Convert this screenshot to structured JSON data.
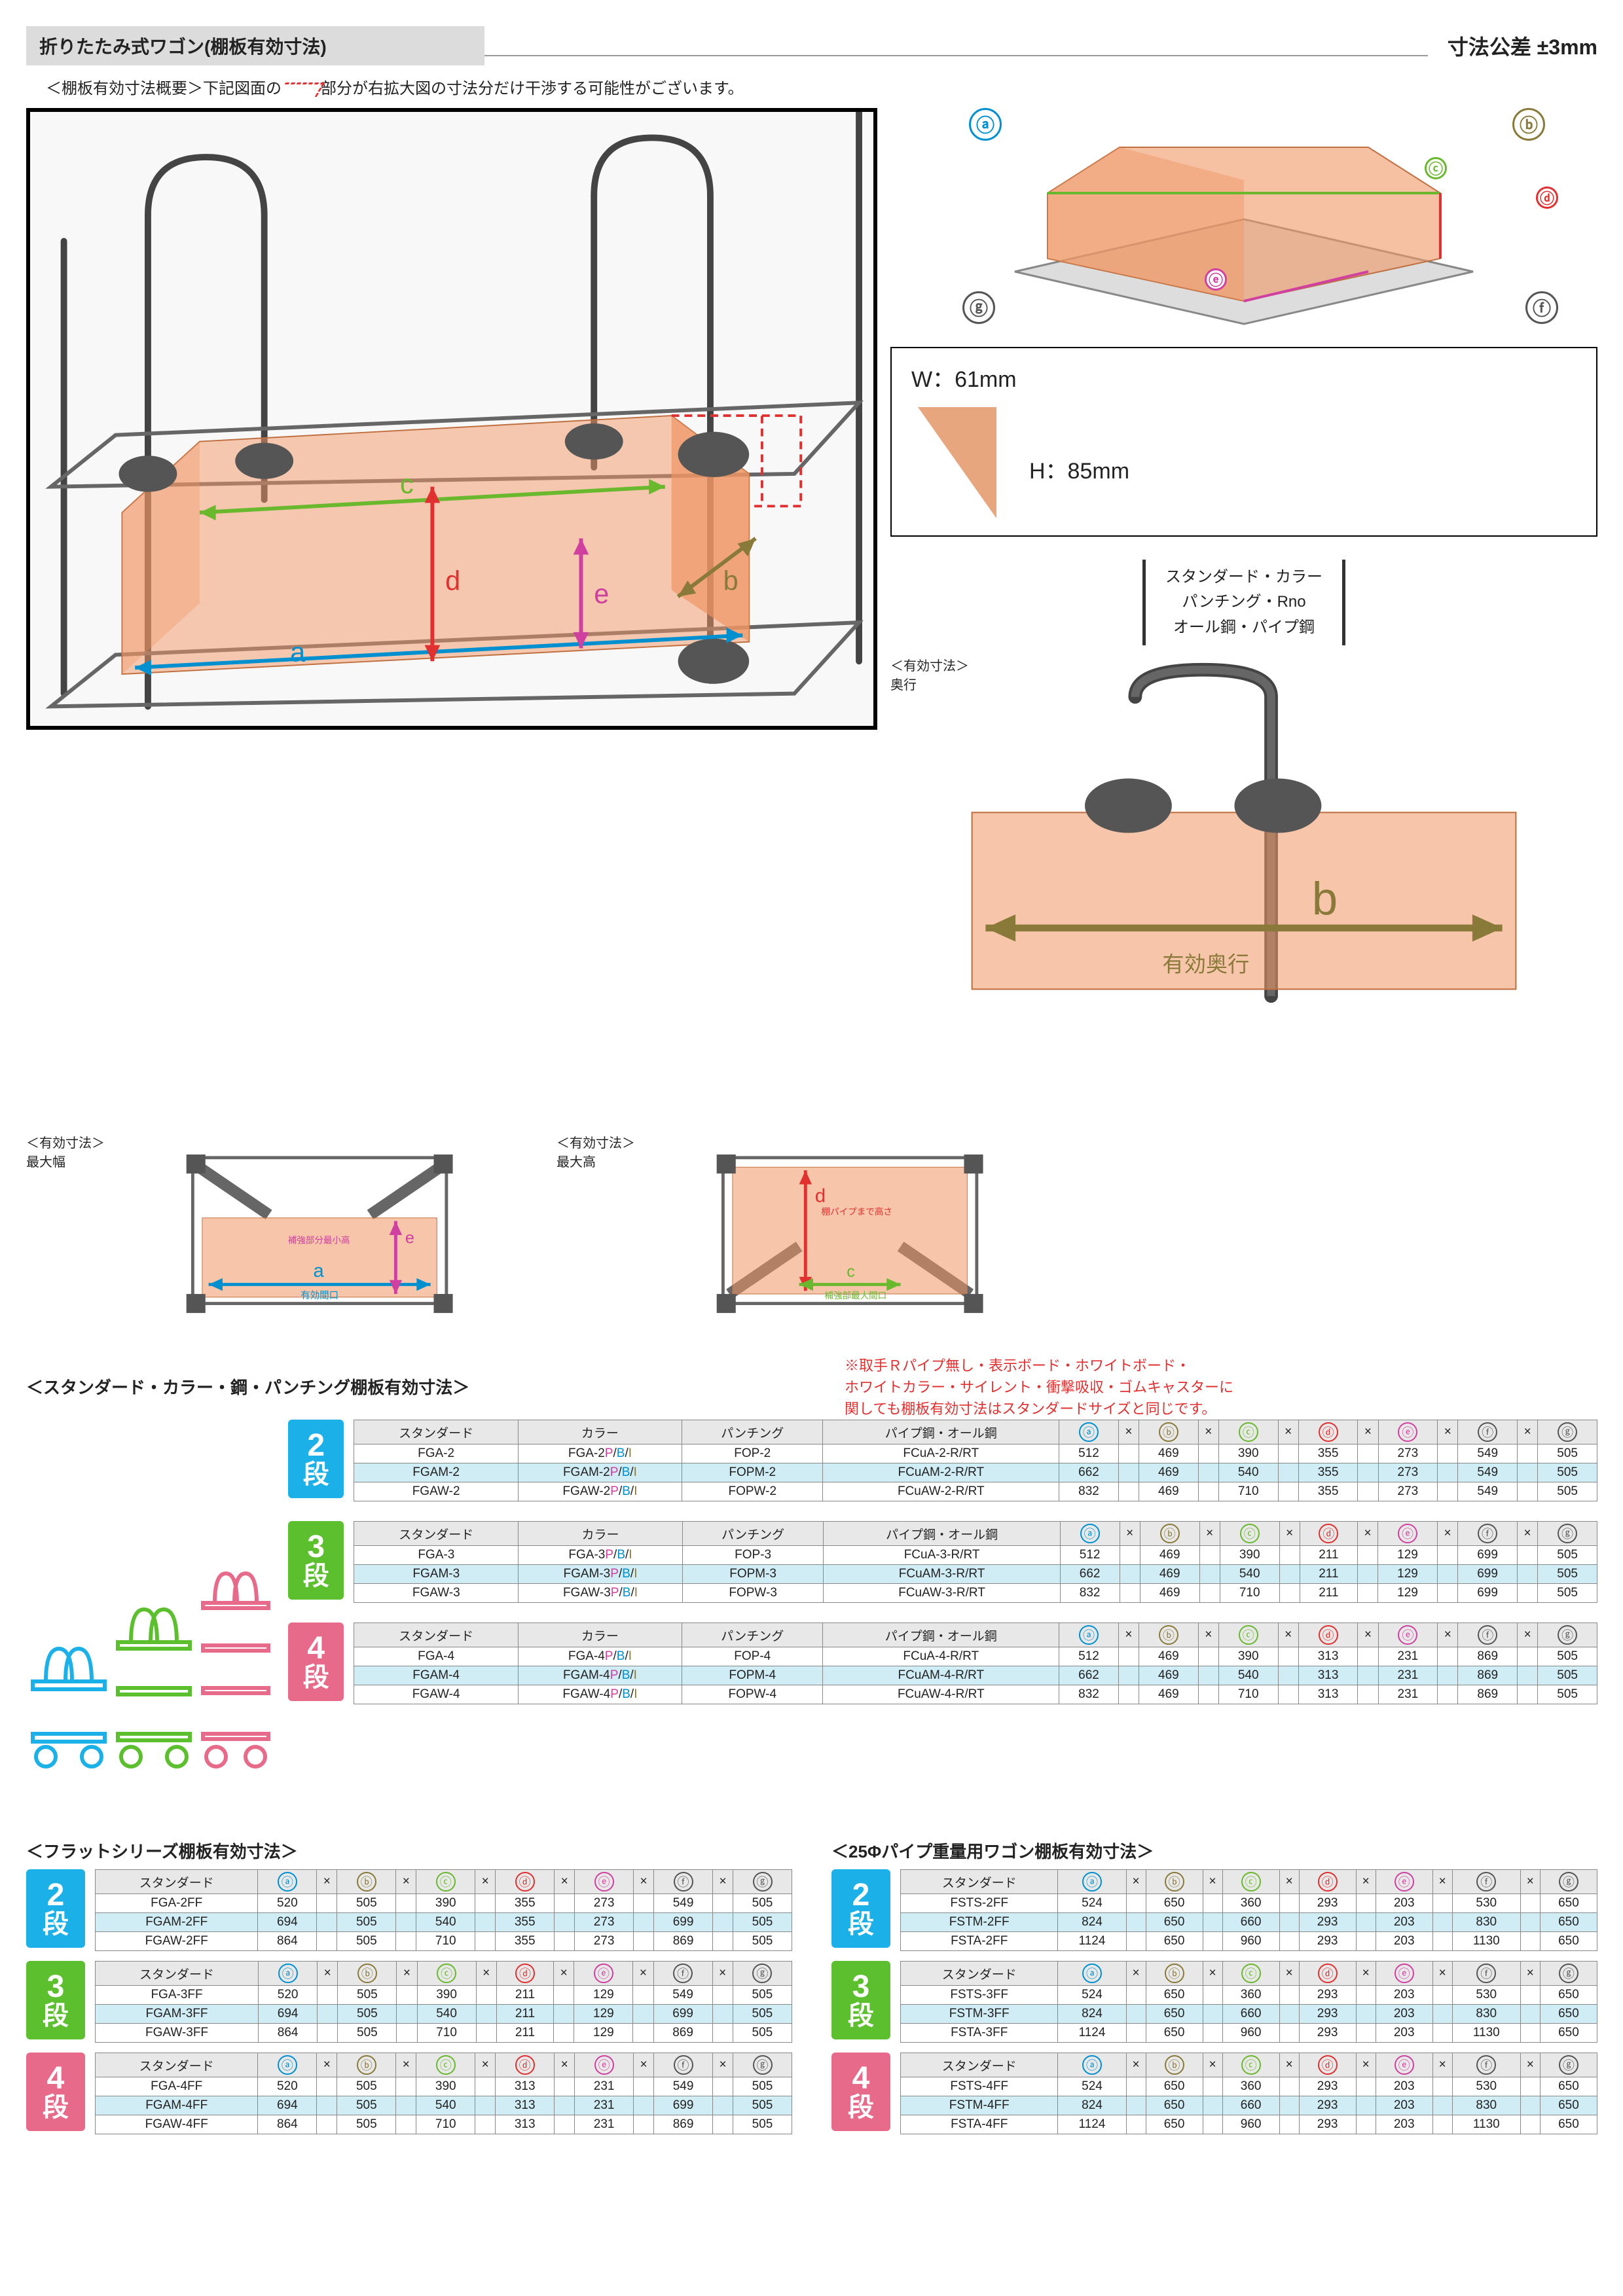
{
  "header": {
    "title": "折りたたみ式ワゴン(棚板有効寸法)",
    "tolerance": "寸法公差 ±3mm"
  },
  "subtitle": {
    "prefix": "＜棚板有効寸法概要＞下記図面の",
    "highlight": "　　　",
    "suffix": "部分が右拡大図の寸法分だけ干渉する可能性がございます。"
  },
  "callout": {
    "w": "W：61mm",
    "h": "H：85mm"
  },
  "type_box": [
    "スタンダード・カラー",
    "パンチング・Rno",
    "オール鋼・パイプ鋼"
  ],
  "small_diag": [
    {
      "t1": "＜有効寸法＞",
      "t2": "最大幅",
      "a": "a",
      "a_sub": "有効間口",
      "e": "e",
      "e_sub": "補強部分最小高"
    },
    {
      "t1": "＜有効寸法＞",
      "t2": "最大高",
      "d": "d",
      "d_sub": "棚パイプまで高さ",
      "c": "c",
      "c_sub": "補強部最大間口"
    },
    {
      "t1": "＜有効寸法＞",
      "t2": "奥行",
      "b": "b",
      "b_sub": "有効奥行"
    }
  ],
  "note_red": "※取手Ｒパイプ無し・表示ボード・ホワイトボード・\nホワイトカラー・サイレント・衝撃吸収・ゴムキャスターに\n関しても棚板有効寸法はスタンダードサイズと同じです。",
  "section_std": "＜スタンダード・カラー・鋼・パンチング棚板有効寸法＞",
  "section_flat": "＜フラットシリーズ棚板有効寸法＞",
  "section_25": "＜25Φパイプ重量用ワゴン棚板有効寸法＞",
  "hdr": {
    "std": "スタンダード",
    "color": "カラー",
    "punch": "パンチング",
    "pipe": "パイプ鋼・オール鋼"
  },
  "dim_letters": [
    "ⓐ",
    "ⓑ",
    "ⓒ",
    "ⓓ",
    "ⓔ",
    "ⓕ",
    "ⓖ"
  ],
  "std_tables": [
    {
      "tier": 2,
      "rows": [
        {
          "s": "FGA-2",
          "c": "FGA-2",
          "p": "FOP-2",
          "pi": "FCuA-2-R/RT",
          "d": [
            512,
            469,
            390,
            355,
            273,
            549,
            505
          ]
        },
        {
          "s": "FGAM-2",
          "c": "FGAM-2",
          "p": "FOPM-2",
          "pi": "FCuAM-2-R/RT",
          "d": [
            662,
            469,
            540,
            355,
            273,
            549,
            505
          ]
        },
        {
          "s": "FGAW-2",
          "c": "FGAW-2",
          "p": "FOPW-2",
          "pi": "FCuAW-2-R/RT",
          "d": [
            832,
            469,
            710,
            355,
            273,
            549,
            505
          ]
        }
      ]
    },
    {
      "tier": 3,
      "rows": [
        {
          "s": "FGA-3",
          "c": "FGA-3",
          "p": "FOP-3",
          "pi": "FCuA-3-R/RT",
          "d": [
            512,
            469,
            390,
            211,
            129,
            699,
            505
          ]
        },
        {
          "s": "FGAM-3",
          "c": "FGAM-3",
          "p": "FOPM-3",
          "pi": "FCuAM-3-R/RT",
          "d": [
            662,
            469,
            540,
            211,
            129,
            699,
            505
          ]
        },
        {
          "s": "FGAW-3",
          "c": "FGAW-3",
          "p": "FOPW-3",
          "pi": "FCuAW-3-R/RT",
          "d": [
            832,
            469,
            710,
            211,
            129,
            699,
            505
          ]
        }
      ]
    },
    {
      "tier": 4,
      "rows": [
        {
          "s": "FGA-4",
          "c": "FGA-4",
          "p": "FOP-4",
          "pi": "FCuA-4-R/RT",
          "d": [
            512,
            469,
            390,
            313,
            231,
            869,
            505
          ]
        },
        {
          "s": "FGAM-4",
          "c": "FGAM-4",
          "p": "FOPM-4",
          "pi": "FCuAM-4-R/RT",
          "d": [
            662,
            469,
            540,
            313,
            231,
            869,
            505
          ]
        },
        {
          "s": "FGAW-4",
          "c": "FGAW-4",
          "p": "FOPW-4",
          "pi": "FCuAW-4-R/RT",
          "d": [
            832,
            469,
            710,
            313,
            231,
            869,
            505
          ]
        }
      ]
    }
  ],
  "flat_tables": [
    {
      "tier": 2,
      "rows": [
        {
          "s": "FGA-2FF",
          "d": [
            520,
            505,
            390,
            355,
            273,
            549,
            505
          ]
        },
        {
          "s": "FGAM-2FF",
          "d": [
            694,
            505,
            540,
            355,
            273,
            699,
            505
          ]
        },
        {
          "s": "FGAW-2FF",
          "d": [
            864,
            505,
            710,
            355,
            273,
            869,
            505
          ]
        }
      ]
    },
    {
      "tier": 3,
      "rows": [
        {
          "s": "FGA-3FF",
          "d": [
            520,
            505,
            390,
            211,
            129,
            549,
            505
          ]
        },
        {
          "s": "FGAM-3FF",
          "d": [
            694,
            505,
            540,
            211,
            129,
            699,
            505
          ]
        },
        {
          "s": "FGAW-3FF",
          "d": [
            864,
            505,
            710,
            211,
            129,
            869,
            505
          ]
        }
      ]
    },
    {
      "tier": 4,
      "rows": [
        {
          "s": "FGA-4FF",
          "d": [
            520,
            505,
            390,
            313,
            231,
            549,
            505
          ]
        },
        {
          "s": "FGAM-4FF",
          "d": [
            694,
            505,
            540,
            313,
            231,
            699,
            505
          ]
        },
        {
          "s": "FGAW-4FF",
          "d": [
            864,
            505,
            710,
            313,
            231,
            869,
            505
          ]
        }
      ]
    }
  ],
  "p25_tables": [
    {
      "tier": 2,
      "rows": [
        {
          "s": "FSTS-2FF",
          "d": [
            524,
            650,
            360,
            293,
            203,
            530,
            650
          ]
        },
        {
          "s": "FSTM-2FF",
          "d": [
            824,
            650,
            660,
            293,
            203,
            830,
            650
          ]
        },
        {
          "s": "FSTA-2FF",
          "d": [
            1124,
            650,
            960,
            293,
            203,
            1130,
            650
          ]
        }
      ]
    },
    {
      "tier": 3,
      "rows": [
        {
          "s": "FSTS-3FF",
          "d": [
            524,
            650,
            360,
            293,
            203,
            530,
            650
          ]
        },
        {
          "s": "FSTM-3FF",
          "d": [
            824,
            650,
            660,
            293,
            203,
            830,
            650
          ]
        },
        {
          "s": "FSTA-3FF",
          "d": [
            1124,
            650,
            960,
            293,
            203,
            1130,
            650
          ]
        }
      ]
    },
    {
      "tier": 4,
      "rows": [
        {
          "s": "FSTS-4FF",
          "d": [
            524,
            650,
            360,
            293,
            203,
            530,
            650
          ]
        },
        {
          "s": "FSTM-4FF",
          "d": [
            824,
            650,
            660,
            293,
            203,
            830,
            650
          ]
        },
        {
          "s": "FSTA-4FF",
          "d": [
            1124,
            650,
            960,
            293,
            203,
            1130,
            650
          ]
        }
      ]
    }
  ],
  "colors": {
    "a": "#0090d0",
    "b": "#8a7a3a",
    "c": "#6ab82e",
    "d": "#e03030",
    "e": "#d040a0",
    "f": "#555",
    "g": "#555",
    "t2": "#1bb0e8",
    "t3": "#5bbf2e",
    "t4": "#e86a8a",
    "shelf_fill": "rgba(240,150,100,0.55)"
  }
}
